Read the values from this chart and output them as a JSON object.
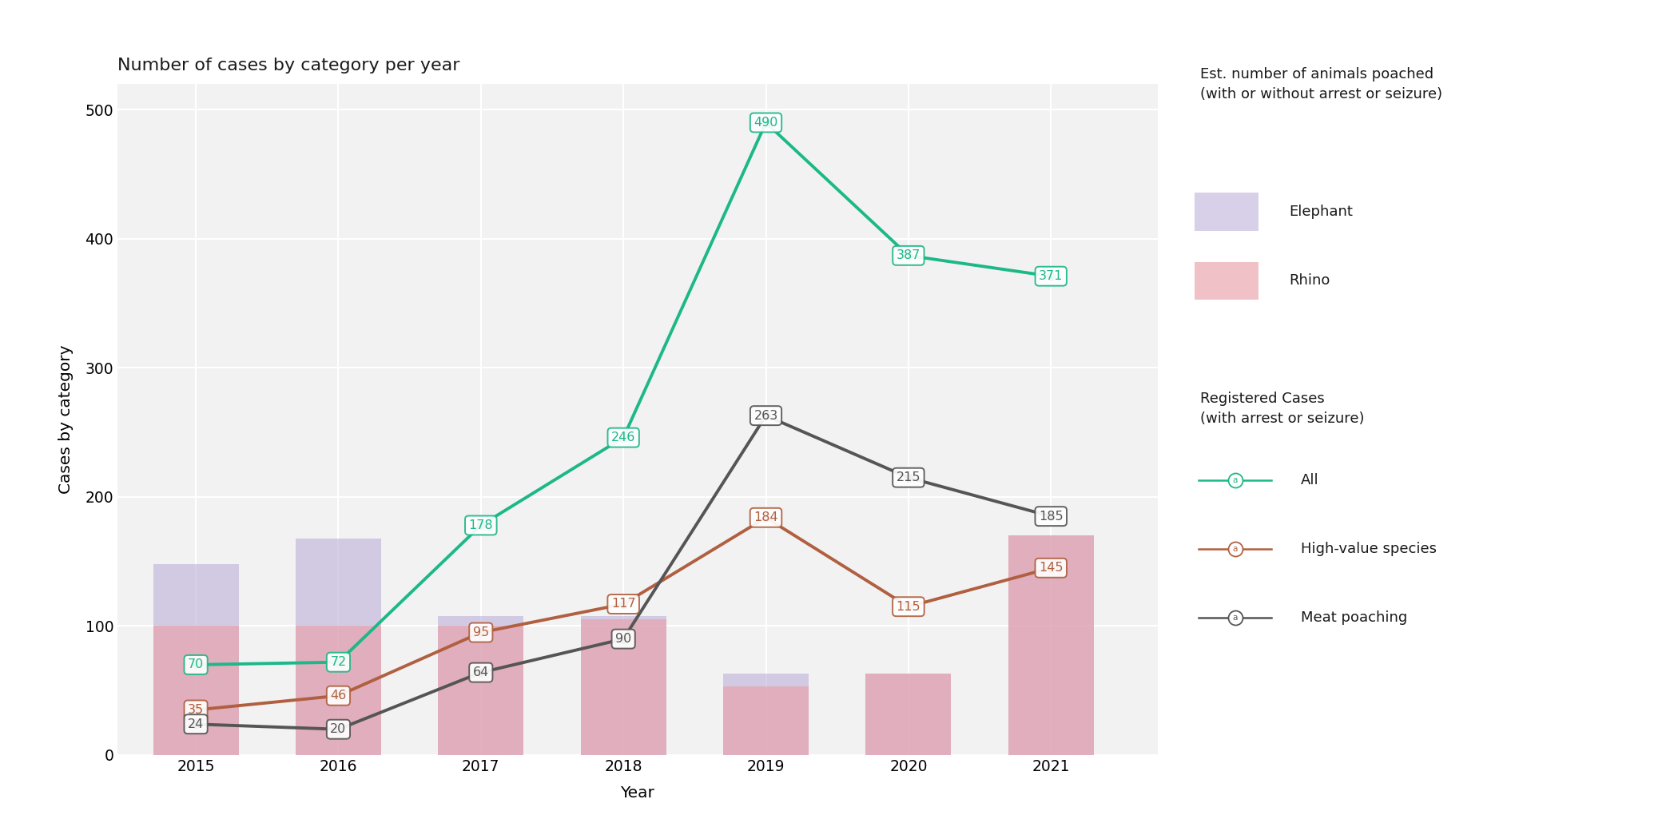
{
  "title": "Number of cases by category per year",
  "xlabel": "Year",
  "ylabel": "Cases by category",
  "years": [
    2015,
    2016,
    2017,
    2018,
    2019,
    2020,
    2021
  ],
  "bar_elephant": [
    148,
    168,
    108,
    108,
    63,
    63,
    170
  ],
  "bar_rhino": [
    100,
    100,
    100,
    105,
    53,
    63,
    170
  ],
  "line_all": [
    70,
    72,
    178,
    246,
    490,
    387,
    371
  ],
  "line_high_value": [
    35,
    46,
    95,
    117,
    184,
    115,
    145
  ],
  "line_meat": [
    24,
    20,
    64,
    90,
    263,
    215,
    185
  ],
  "color_elephant": "#b8aad8",
  "color_rhino": "#e8a0a8",
  "color_all": "#1db887",
  "color_high_value": "#b06040",
  "color_meat": "#555555",
  "bg_color": "#f2f2f2",
  "ylim": [
    0,
    520
  ],
  "legend_title1": "Est. number of animals poached\n(with or without arrest or seizure)",
  "legend_title2": "Registered Cases\n(with arrest or seizure)",
  "legend_elephant": "Elephant",
  "legend_rhino": "Rhino",
  "legend_all": "All",
  "legend_high_value": "High-value species",
  "legend_meat": "Meat poaching",
  "yticks": [
    0,
    100,
    200,
    300,
    400,
    500
  ]
}
